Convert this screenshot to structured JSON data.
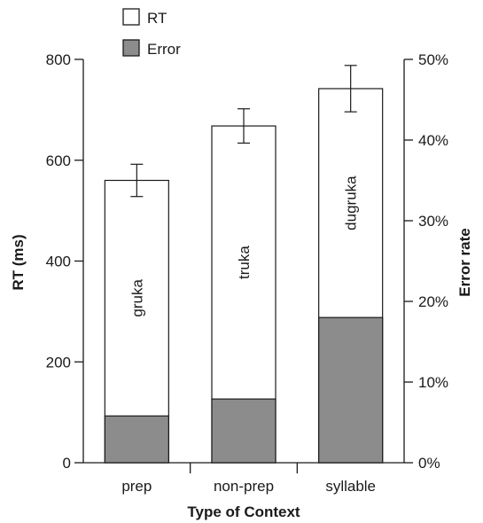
{
  "chart_data": {
    "type": "bar",
    "categories": [
      "prep",
      "non-prep",
      "syllable"
    ],
    "bar_labels": [
      "gruka",
      "truka",
      "dugruka"
    ],
    "series": [
      {
        "name": "RT",
        "axis": "left",
        "values": [
          560,
          668,
          742
        ],
        "error": [
          32,
          34,
          46
        ],
        "color": "#ffffff"
      },
      {
        "name": "Error",
        "axis": "right",
        "values": [
          5.8,
          7.9,
          18.0
        ],
        "color": "#8c8c8c"
      }
    ],
    "xlabel": "Type of Context",
    "ylabel_left": "RT (ms)",
    "ylabel_right": "Error rate",
    "ylim_left": [
      0,
      800
    ],
    "ylim_right": [
      0,
      50
    ],
    "yticks_left": [
      "0",
      "200",
      "400",
      "600",
      "800"
    ],
    "yticks_right": [
      "0%",
      "10%",
      "20%",
      "30%",
      "40%",
      "50%"
    ],
    "legend_position": "top-left",
    "grid": false
  }
}
